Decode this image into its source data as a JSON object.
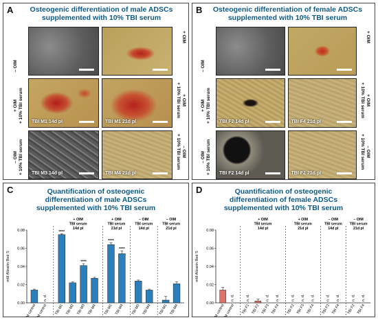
{
  "panels": {
    "A": {
      "letter": "A",
      "title": "Osteogenic differentiation of male ADSCs supplemented with 10% TBI serum",
      "row_labels": [
        "– OIM",
        "+ OIM\n+ 10% TBI serum",
        "– OIM\n+ 10% TBI serum"
      ],
      "right_labels": [
        "+ OIM",
        "+ OIM\n+ 10% TBI serum",
        "– OIM\n+ 10% TBI serum"
      ],
      "images": [
        {
          "label": "",
          "style": "gray"
        },
        {
          "label": "",
          "style": "tan-red"
        },
        {
          "label": "TBI M1 14d pl",
          "style": "tan-red-heavy"
        },
        {
          "label": "TBI M1 21d pl",
          "style": "tan-red-heavy2"
        },
        {
          "label": "TBI M3 14d pl",
          "style": "gray-fibers"
        },
        {
          "label": "TBI M4 21d pl",
          "style": "tan-plain"
        }
      ]
    },
    "B": {
      "letter": "B",
      "title": "Osteogenic differentiation of female ADSCs supplemented with 10% TBI serum",
      "row_labels": [
        "– OIM",
        "+ OIM\n+ 10% TBI serum",
        "– OIM\n+ 10% TBI serum"
      ],
      "right_labels": [
        "+ OIM",
        "+ OIM\n+ 10% TBI serum",
        "– OIM\n+ 10% TBI serum"
      ],
      "images": [
        {
          "label": "",
          "style": "gray"
        },
        {
          "label": "",
          "style": "tan-red-small"
        },
        {
          "label": "TBI F2 14d pl",
          "style": "tan-dark"
        },
        {
          "label": "TBI F4 21d pl",
          "style": "tan-plain"
        },
        {
          "label": "TBI F2 14d pl",
          "style": "dark-bubble"
        },
        {
          "label": "TBI F2 21d pl",
          "style": "tan-plain"
        }
      ]
    },
    "C": {
      "letter": "C",
      "title": "Quantification of osteogenic differentiation of male ADSCs supplemented with 10% TBI serum"
    },
    "D": {
      "letter": "D",
      "title": "Quantification of osteogenic differentiation of female ADSCs supplemented with 10% TBI serum"
    }
  },
  "chart_data": [
    {
      "type": "bar",
      "panel": "C",
      "title": "Quantification of osteogenic differentiation of male ADSCs supplemented with 10% TBI serum",
      "ylabel": "mM Alizarin  Red S",
      "ylim": [
        0,
        0.08
      ],
      "yticks": [
        "0.00",
        "0.02",
        "0.04",
        "0.06",
        "0.08"
      ],
      "color": "#2a7fbd",
      "control_color": "#2a7fbd",
      "groups": [
        {
          "label": "",
          "categories": [
            "OIM control",
            "CM control"
          ]
        },
        {
          "label": "+ OIM\nTBI serum\n14d pl",
          "categories": [
            "TBI M1",
            "TBI M2",
            "TBI M3",
            "TBI M4"
          ]
        },
        {
          "label": "+ OIM\nTBI serum\n21d pl",
          "categories": [
            "TBI M1",
            "TBI M4"
          ]
        },
        {
          "label": "– OIM\nTBI serum\n14d pl",
          "categories": [
            "TBI M3",
            "TBI M4"
          ]
        },
        {
          "label": "– OIM\nTBI serum\n21d pl",
          "categories": [
            "TBI M1",
            "TBI M4"
          ]
        }
      ],
      "values": [
        0.014,
        null,
        0.075,
        0.022,
        0.041,
        0.027,
        0.064,
        0.054,
        0.024,
        0.014,
        0.003,
        0.021
      ],
      "errors": [
        0.001,
        null,
        0.001,
        0.001,
        0.002,
        0.001,
        0.002,
        0.003,
        0.001,
        0.001,
        0.004,
        0.002
      ],
      "annotations": [
        "",
        "n. d.",
        "****",
        "",
        "****",
        "",
        "****",
        "****",
        "",
        "",
        "",
        ""
      ]
    },
    {
      "type": "bar",
      "panel": "D",
      "title": "Quantification of osteogenic differentiation of female ADSCs supplemented with 10% TBI serum",
      "ylabel": "mM Alizarin  Red S",
      "ylim": [
        0,
        0.08
      ],
      "yticks": [
        "0.00",
        "0.02",
        "0.04",
        "0.06",
        "0.08"
      ],
      "color": "#d9736a",
      "groups": [
        {
          "label": "",
          "categories": [
            "OIM control",
            "CM control"
          ]
        },
        {
          "label": "+ OIM\nTBI serum\n14d pl",
          "categories": [
            "TBI F1",
            "TBI F2",
            "TBI F3",
            "TBI F4"
          ]
        },
        {
          "label": "+ OIM\nTBI serum\n21d pl",
          "categories": [
            "TBI F2",
            "TBI F3",
            "TBI F4"
          ]
        },
        {
          "label": "– OIM\nTBI serum\n14d pl",
          "categories": [
            "TBI F2",
            "TBI F4"
          ]
        },
        {
          "label": "– OIM\nTBI serum\n21d pl",
          "categories": [
            "TBI F2",
            "TBI F4"
          ]
        }
      ],
      "values": [
        0.014,
        null,
        null,
        0.002,
        null,
        null,
        null,
        null,
        null,
        null,
        null,
        null,
        null
      ],
      "errors": [
        0.003,
        null,
        null,
        0.002,
        null,
        null,
        null,
        null,
        null,
        null,
        null,
        null,
        null
      ],
      "annotations": [
        "",
        "n. d.",
        "n. d.",
        "",
        "n. d.",
        "n. d.",
        "n. d.",
        "n. d.",
        "n. d.",
        "n. d.",
        "n. d.",
        "n. d.",
        "n. d."
      ]
    }
  ]
}
